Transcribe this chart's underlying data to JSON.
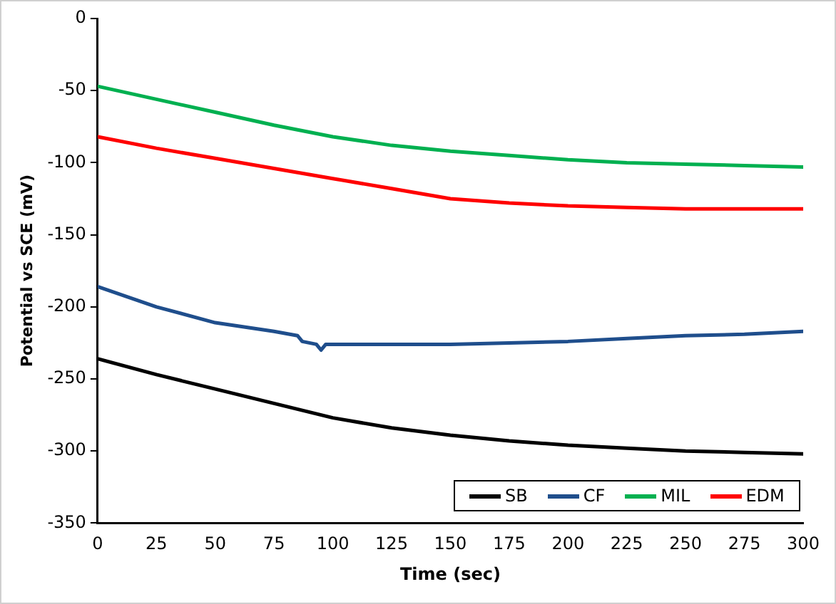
{
  "chart_data": {
    "type": "line",
    "xlabel": "Time (sec)",
    "ylabel": "Potential vs SCE (mV)",
    "xlim": [
      0,
      300
    ],
    "xticks": [
      0,
      25,
      50,
      75,
      100,
      125,
      150,
      175,
      200,
      225,
      250,
      275,
      300
    ],
    "ylim": [
      -350,
      0
    ],
    "yticks": [
      -350,
      -300,
      -250,
      -200,
      -150,
      -100,
      -50,
      0
    ],
    "grid": false,
    "legend": "bottom right",
    "marker": "none",
    "line_style": "solid",
    "series": [
      {
        "name": "SB",
        "color": "#000000",
        "x": [
          0,
          25,
          50,
          75,
          100,
          125,
          150,
          175,
          200,
          225,
          250,
          275,
          300
        ],
        "values": [
          -236,
          -247,
          -257,
          -267,
          -277,
          -284,
          -289,
          -293,
          -296,
          -298,
          -300,
          -301,
          -302
        ]
      },
      {
        "name": "CF",
        "color": "#1f4e8c",
        "x": [
          0,
          25,
          50,
          75,
          85,
          87,
          93,
          95,
          97,
          125,
          150,
          175,
          200,
          225,
          250,
          275,
          300
        ],
        "values": [
          -186,
          -200,
          -211,
          -217,
          -220,
          -224,
          -226,
          -230,
          -226,
          -226,
          -226,
          -225,
          -224,
          -222,
          -220,
          -219,
          -217
        ]
      },
      {
        "name": "MIL",
        "color": "#00b050",
        "x": [
          0,
          25,
          50,
          75,
          100,
          125,
          150,
          175,
          200,
          225,
          250,
          275,
          300
        ],
        "values": [
          -47,
          -56,
          -65,
          -74,
          -82,
          -88,
          -92,
          -95,
          -98,
          -100,
          -101,
          -102,
          -103
        ]
      },
      {
        "name": "EDM",
        "color": "#ff0000",
        "x": [
          0,
          25,
          50,
          75,
          100,
          125,
          150,
          175,
          200,
          225,
          250,
          275,
          300
        ],
        "values": [
          -82,
          -90,
          -97,
          -104,
          -111,
          -118,
          -125,
          -128,
          -130,
          -131,
          -132,
          -132,
          -132
        ]
      }
    ]
  }
}
